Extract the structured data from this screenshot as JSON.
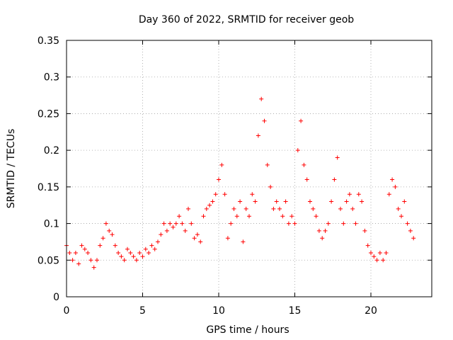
{
  "chart_data": {
    "type": "scatter",
    "title": "Day 360 of 2022, SRMTID for receiver geob",
    "xlabel": "GPS time / hours",
    "ylabel": "SRMTID / TECUs",
    "xlim": [
      0,
      24
    ],
    "ylim": [
      0,
      0.35
    ],
    "xticks": [
      0,
      5,
      10,
      15,
      20
    ],
    "xtick_labels": [
      "0",
      "5",
      "10",
      "15",
      "20"
    ],
    "yticks": [
      0,
      0.05,
      0.1,
      0.15,
      0.2,
      0.25,
      0.3,
      0.35
    ],
    "ytick_labels": [
      "0",
      "0.05",
      "0.1",
      "0.15",
      "0.2",
      "0.25",
      "0.3",
      "0.35"
    ],
    "grid": true,
    "marker": "+",
    "color": "#ff0000",
    "series": [
      {
        "name": "SRMTID",
        "x": [
          0.0,
          0.2,
          0.4,
          0.6,
          0.8,
          1.0,
          1.2,
          1.4,
          1.6,
          1.8,
          2.0,
          2.2,
          2.4,
          2.6,
          2.8,
          3.0,
          3.2,
          3.4,
          3.6,
          3.8,
          4.0,
          4.2,
          4.4,
          4.6,
          4.8,
          5.0,
          5.2,
          5.4,
          5.6,
          5.8,
          6.0,
          6.2,
          6.4,
          6.6,
          6.8,
          7.0,
          7.2,
          7.4,
          7.6,
          7.8,
          8.0,
          8.2,
          8.4,
          8.6,
          8.8,
          9.0,
          9.2,
          9.4,
          9.6,
          9.8,
          10.0,
          10.2,
          10.4,
          10.6,
          10.8,
          11.0,
          11.2,
          11.4,
          11.6,
          11.8,
          12.0,
          12.2,
          12.4,
          12.6,
          12.8,
          13.0,
          13.2,
          13.4,
          13.6,
          13.8,
          14.0,
          14.2,
          14.4,
          14.6,
          14.8,
          15.0,
          15.2,
          15.4,
          15.6,
          15.8,
          16.0,
          16.2,
          16.4,
          16.6,
          16.8,
          17.0,
          17.2,
          17.4,
          17.6,
          17.8,
          18.0,
          18.2,
          18.4,
          18.6,
          18.8,
          19.0,
          19.2,
          19.4,
          19.6,
          19.8,
          20.0,
          20.2,
          20.4,
          20.6,
          20.8,
          21.0,
          21.2,
          21.4,
          21.6,
          21.8,
          22.0,
          22.2,
          22.4,
          22.6,
          22.8
        ],
        "y": [
          0.07,
          0.06,
          0.05,
          0.06,
          0.045,
          0.07,
          0.065,
          0.06,
          0.05,
          0.04,
          0.05,
          0.07,
          0.08,
          0.1,
          0.09,
          0.085,
          0.07,
          0.06,
          0.055,
          0.05,
          0.065,
          0.06,
          0.055,
          0.05,
          0.06,
          0.055,
          0.065,
          0.06,
          0.07,
          0.065,
          0.075,
          0.085,
          0.1,
          0.09,
          0.1,
          0.095,
          0.1,
          0.11,
          0.1,
          0.09,
          0.12,
          0.1,
          0.08,
          0.085,
          0.075,
          0.11,
          0.12,
          0.125,
          0.13,
          0.14,
          0.16,
          0.18,
          0.14,
          0.08,
          0.1,
          0.12,
          0.11,
          0.13,
          0.075,
          0.12,
          0.11,
          0.14,
          0.13,
          0.22,
          0.27,
          0.24,
          0.18,
          0.15,
          0.12,
          0.13,
          0.12,
          0.11,
          0.13,
          0.1,
          0.11,
          0.1,
          0.2,
          0.24,
          0.18,
          0.16,
          0.13,
          0.12,
          0.11,
          0.09,
          0.08,
          0.09,
          0.1,
          0.13,
          0.16,
          0.19,
          0.12,
          0.1,
          0.13,
          0.14,
          0.12,
          0.1,
          0.14,
          0.13,
          0.09,
          0.07,
          0.06,
          0.055,
          0.05,
          0.06,
          0.05,
          0.06,
          0.14,
          0.16,
          0.15,
          0.12,
          0.11,
          0.13,
          0.1,
          0.09,
          0.08
        ]
      }
    ]
  }
}
